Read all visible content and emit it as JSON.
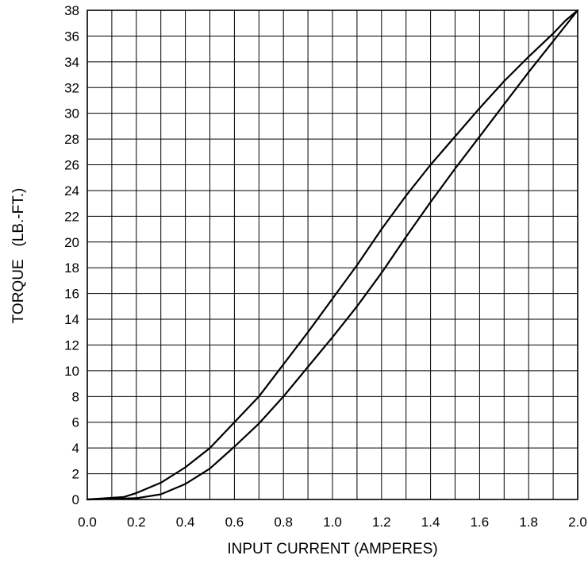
{
  "chart_data": {
    "type": "line",
    "title": "",
    "xlabel": "INPUT CURRENT  (AMPERES)",
    "ylabel": "TORQUE   (LB.-FT.)",
    "xlim": [
      0.0,
      2.0
    ],
    "ylim": [
      0,
      38
    ],
    "x_ticks": [
      0.0,
      0.2,
      0.4,
      0.6,
      0.8,
      1.0,
      1.2,
      1.4,
      1.6,
      1.8,
      2.0
    ],
    "x_tick_labels": [
      "0.0",
      "0.2",
      "0.4",
      "0.6",
      "0.8",
      "1.0",
      "1.2",
      "1.4",
      "1.6",
      "1.8",
      "2.0"
    ],
    "y_ticks": [
      0,
      2,
      4,
      6,
      8,
      10,
      12,
      14,
      16,
      18,
      20,
      22,
      24,
      26,
      28,
      30,
      32,
      34,
      36,
      38
    ],
    "y_tick_labels": [
      "0",
      "2",
      "4",
      "6",
      "8",
      "10",
      "12",
      "14",
      "16",
      "18",
      "20",
      "22",
      "24",
      "26",
      "28",
      "30",
      "32",
      "34",
      "36",
      "38"
    ],
    "x_minor_grid_step": 0.1,
    "grid": true,
    "legend": "none",
    "series": [
      {
        "values_x": [
          0.0,
          0.15,
          0.2,
          0.3,
          0.4,
          0.5,
          0.6,
          0.7,
          0.8,
          0.9,
          1.0,
          1.1,
          1.2,
          1.3,
          1.4,
          1.5,
          1.6,
          1.7,
          1.8,
          1.9,
          1.95,
          2.0
        ],
        "values_y": [
          0.0,
          0.2,
          0.5,
          1.3,
          2.5,
          4.0,
          6.0,
          8.0,
          10.5,
          13.0,
          15.6,
          18.2,
          21.0,
          23.6,
          26.0,
          28.2,
          30.4,
          32.5,
          34.4,
          36.2,
          37.2,
          38.0
        ]
      },
      {
        "values_x": [
          0.0,
          0.2,
          0.3,
          0.4,
          0.5,
          0.6,
          0.7,
          0.8,
          0.9,
          1.0,
          1.1,
          1.2,
          1.3,
          1.4,
          1.5,
          1.6,
          1.7,
          1.8,
          1.9,
          2.0
        ],
        "values_y": [
          0.0,
          0.1,
          0.4,
          1.2,
          2.4,
          4.1,
          5.9,
          8.0,
          10.3,
          12.6,
          15.0,
          17.6,
          20.4,
          23.1,
          25.7,
          28.2,
          30.7,
          33.2,
          35.6,
          38.0
        ]
      }
    ]
  }
}
